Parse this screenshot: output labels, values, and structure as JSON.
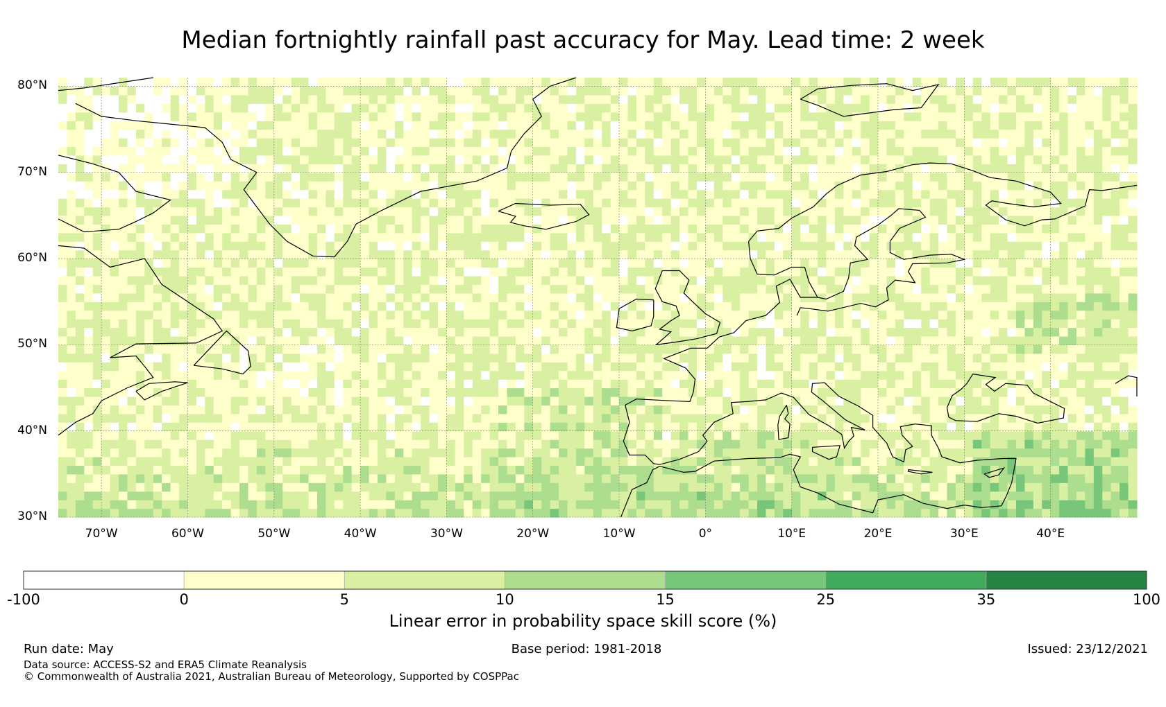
{
  "title": "Median fortnightly rainfall past accuracy for May. Lead time: 2 week",
  "map": {
    "projection": "plate-carree",
    "lon_range": [
      -75,
      50
    ],
    "lat_range": [
      30,
      81
    ],
    "lat_labels": [
      {
        "value": 80,
        "text": "80°N"
      },
      {
        "value": 70,
        "text": "70°N"
      },
      {
        "value": 60,
        "text": "60°N"
      },
      {
        "value": 50,
        "text": "50°N"
      },
      {
        "value": 40,
        "text": "40°N"
      },
      {
        "value": 30,
        "text": "30°N"
      }
    ],
    "lon_labels": [
      {
        "value": -70,
        "text": "70°W"
      },
      {
        "value": -60,
        "text": "60°W"
      },
      {
        "value": -50,
        "text": "50°W"
      },
      {
        "value": -40,
        "text": "40°W"
      },
      {
        "value": -30,
        "text": "30°W"
      },
      {
        "value": -20,
        "text": "20°W"
      },
      {
        "value": -10,
        "text": "10°W"
      },
      {
        "value": 0,
        "text": "0°"
      },
      {
        "value": 10,
        "text": "10°E"
      },
      {
        "value": 20,
        "text": "20°E"
      },
      {
        "value": 30,
        "text": "30°E"
      },
      {
        "value": 40,
        "text": "40°E"
      }
    ],
    "gridlines": true,
    "coastline_color": "#000000"
  },
  "colorbar": {
    "label": "Linear error in probability space skill score (%)",
    "boundaries": [
      "-100",
      "0",
      "5",
      "10",
      "15",
      "25",
      "35",
      "100"
    ],
    "colors": [
      "#ffffff",
      "#ffffcc",
      "#d9f0a3",
      "#addd8e",
      "#78c679",
      "#41ab5d",
      "#238443"
    ]
  },
  "footer": {
    "run_date": "Run date: May",
    "base_period": "Base period: 1981-2018",
    "issued": "Issued: 23/12/2021",
    "data_source": "Data source: ACCESS-S2 and ERA5 Climate Reanalysis",
    "copyright": "© Commonwealth of Australia 2021, Australian Bureau of Meteorology, Supported by COSPPac"
  }
}
